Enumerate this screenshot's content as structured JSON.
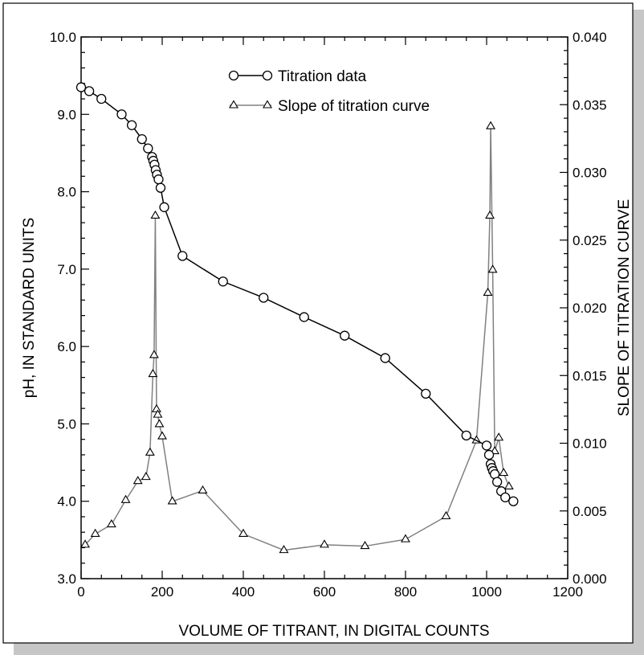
{
  "chart_data": {
    "type": "line",
    "title": "",
    "xlabel": "VOLUME OF TITRANT, IN DIGITAL COUNTS",
    "ylabel": "pH, IN STANDARD UNITS",
    "y2label": "SLOPE OF TITRATION CURVE",
    "xlim": [
      0,
      1200
    ],
    "ylim": [
      3.0,
      10.0
    ],
    "y2lim": [
      0.0,
      0.04
    ],
    "xticks": [
      "0",
      "200",
      "400",
      "600",
      "800",
      "1000",
      "1200"
    ],
    "yticks": [
      "3.0",
      "4.0",
      "5.0",
      "6.0",
      "7.0",
      "8.0",
      "9.0",
      "10.0"
    ],
    "y2ticks": [
      "0.000",
      "0.005",
      "0.010",
      "0.015",
      "0.020",
      "0.025",
      "0.030",
      "0.035",
      "0.040"
    ],
    "grid": false,
    "legend_position": "top-center",
    "series": [
      {
        "name": "Titration data",
        "axis": "left",
        "marker": "circle",
        "color": "#000000",
        "x": [
          0,
          20,
          50,
          100,
          125,
          150,
          165,
          175,
          178,
          181,
          184,
          187,
          191,
          196,
          205,
          250,
          350,
          450,
          550,
          650,
          750,
          850,
          950,
          1000,
          1006,
          1010,
          1013,
          1016,
          1020,
          1026,
          1036,
          1046,
          1066
        ],
        "y": [
          9.35,
          9.3,
          9.2,
          9.0,
          8.86,
          8.68,
          8.56,
          8.45,
          8.4,
          8.35,
          8.28,
          8.22,
          8.16,
          8.05,
          7.8,
          7.17,
          6.84,
          6.63,
          6.38,
          6.14,
          5.85,
          5.39,
          4.85,
          4.72,
          4.6,
          4.48,
          4.43,
          4.39,
          4.35,
          4.25,
          4.13,
          4.05,
          4.0
        ]
      },
      {
        "name": "Slope of titration curve",
        "axis": "right",
        "marker": "triangle",
        "color": "#808080",
        "x": [
          10,
          35,
          75,
          110,
          140,
          160,
          170,
          177,
          180,
          183,
          186,
          189,
          193,
          200,
          225,
          300,
          400,
          500,
          600,
          700,
          800,
          900,
          975,
          1003,
          1008,
          1010,
          1015,
          1020,
          1030,
          1042,
          1055
        ],
        "y": [
          0.0025,
          0.0033,
          0.004,
          0.0058,
          0.0072,
          0.0075,
          0.0093,
          0.0151,
          0.0165,
          0.0268,
          0.0125,
          0.0121,
          0.0114,
          0.0105,
          0.0057,
          0.0065,
          0.0033,
          0.0021,
          0.0025,
          0.0024,
          0.0029,
          0.0046,
          0.0102,
          0.0211,
          0.0268,
          0.0334,
          0.0228,
          0.0094,
          0.0104,
          0.0078,
          0.0068
        ]
      }
    ]
  }
}
